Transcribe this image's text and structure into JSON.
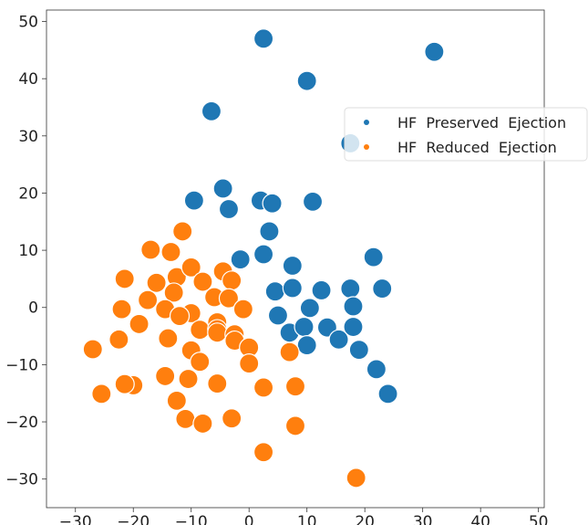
{
  "chart_data": {
    "type": "scatter",
    "title": "",
    "xlabel": "",
    "ylabel": "",
    "xlim": [
      -35,
      51
    ],
    "ylim": [
      -35,
      52
    ],
    "xticks": [
      -30,
      -20,
      -10,
      0,
      10,
      20,
      30,
      40,
      50
    ],
    "yticks": [
      -30,
      -20,
      -10,
      0,
      10,
      20,
      30,
      40,
      50
    ],
    "xtick_labels": [
      "−30",
      "−20",
      "−10",
      "0",
      "10",
      "20",
      "30",
      "40",
      "50"
    ],
    "ytick_labels": [
      "−30",
      "−20",
      "−10",
      "0",
      "10",
      "20",
      "30",
      "40",
      "50"
    ],
    "grid": false,
    "legend_position": "right",
    "series": [
      {
        "name": "HF  Preserved  Ejection",
        "color": "#1f77b4",
        "points": [
          [
            2.5,
            47
          ],
          [
            32,
            44.7
          ],
          [
            10,
            39.6
          ],
          [
            -6.5,
            34.3
          ],
          [
            17.5,
            28.7
          ],
          [
            -9.5,
            18.7
          ],
          [
            -4.5,
            20.8
          ],
          [
            -3.5,
            17.2
          ],
          [
            2,
            18.7
          ],
          [
            4,
            18.2
          ],
          [
            11,
            18.5
          ],
          [
            3.5,
            13.3
          ],
          [
            -1.5,
            8.4
          ],
          [
            2.5,
            9.3
          ],
          [
            7.5,
            7.3
          ],
          [
            21.5,
            8.8
          ],
          [
            4.5,
            2.8
          ],
          [
            7.5,
            3.4
          ],
          [
            12.5,
            3
          ],
          [
            17.5,
            3.3
          ],
          [
            23,
            3.3
          ],
          [
            10.5,
            -0.1
          ],
          [
            18,
            0.2
          ],
          [
            5,
            -1.4
          ],
          [
            7,
            -4.4
          ],
          [
            9.5,
            -3.4
          ],
          [
            13.5,
            -3.5
          ],
          [
            18,
            -3.4
          ],
          [
            10,
            -6.6
          ],
          [
            15.5,
            -5.6
          ],
          [
            19,
            -7.4
          ],
          [
            22,
            -10.8
          ],
          [
            24,
            -15.1
          ]
        ]
      },
      {
        "name": "HF  Reduced  Ejection",
        "color": "#ff7f0e",
        "points": [
          [
            -11.5,
            13.3
          ],
          [
            -17,
            10.1
          ],
          [
            -13.5,
            9.7
          ],
          [
            -21.5,
            5
          ],
          [
            -16,
            4.3
          ],
          [
            -12.5,
            5.3
          ],
          [
            -10,
            7
          ],
          [
            -8,
            4.5
          ],
          [
            -4.5,
            6.3
          ],
          [
            -3,
            4.7
          ],
          [
            -13,
            2.6
          ],
          [
            -17.5,
            1.3
          ],
          [
            -6,
            1.8
          ],
          [
            -3.5,
            1.6
          ],
          [
            -22,
            -0.3
          ],
          [
            -14.5,
            -0.3
          ],
          [
            -10,
            -1
          ],
          [
            -12,
            -1.5
          ],
          [
            -1,
            -0.3
          ],
          [
            -19,
            -2.9
          ],
          [
            -8.5,
            -3.9
          ],
          [
            -5.5,
            -2.6
          ],
          [
            -5.5,
            -3.8
          ],
          [
            -5.5,
            -4.4
          ],
          [
            -22.5,
            -5.6
          ],
          [
            -14,
            -5.4
          ],
          [
            -2.5,
            -4.7
          ],
          [
            -2.5,
            -5.8
          ],
          [
            -27,
            -7.3
          ],
          [
            -10,
            -7.5
          ],
          [
            0,
            -7
          ],
          [
            7,
            -7.8
          ],
          [
            -8.5,
            -9.5
          ],
          [
            0,
            -9.8
          ],
          [
            -14.5,
            -12
          ],
          [
            -10.5,
            -12.5
          ],
          [
            -5.5,
            -13.3
          ],
          [
            -20,
            -13.6
          ],
          [
            -21.5,
            -13.4
          ],
          [
            -25.5,
            -15.1
          ],
          [
            -12.5,
            -16.3
          ],
          [
            2.5,
            -14
          ],
          [
            8,
            -13.8
          ],
          [
            -11,
            -19.5
          ],
          [
            -8,
            -20.3
          ],
          [
            -3,
            -19.4
          ],
          [
            8,
            -20.7
          ],
          [
            2.5,
            -25.3
          ],
          [
            18.5,
            -29.8
          ]
        ]
      }
    ]
  }
}
